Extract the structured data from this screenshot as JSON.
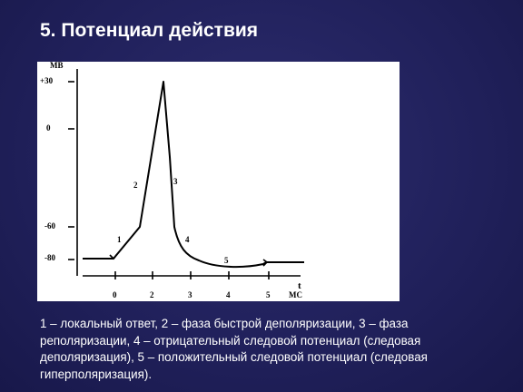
{
  "slide": {
    "title": "5. Потенциал действия",
    "caption": "1 – локальный ответ, 2 – фаза быстрой деполяризации, 3 – фаза реполяризации, 4 – отрицательный следовой потенциал (следовая деполяризация), 5 – положительный следовой потенциал (следовая гиперполяризация)."
  },
  "diagram": {
    "y_unit": "МВ",
    "x_unit_top": "t",
    "x_unit_bottom": "МС",
    "y_ticks": [
      "+30",
      "0",
      "-60",
      "-80"
    ],
    "x_ticks": [
      "0",
      "2",
      "3",
      "4",
      "5"
    ],
    "phase_labels": [
      "1",
      "2",
      "3",
      "4",
      "5"
    ]
  },
  "colors": {
    "background": "#20205a",
    "title_text": "#ffffff",
    "figure_background": "#ffffff",
    "line": "#000000"
  }
}
